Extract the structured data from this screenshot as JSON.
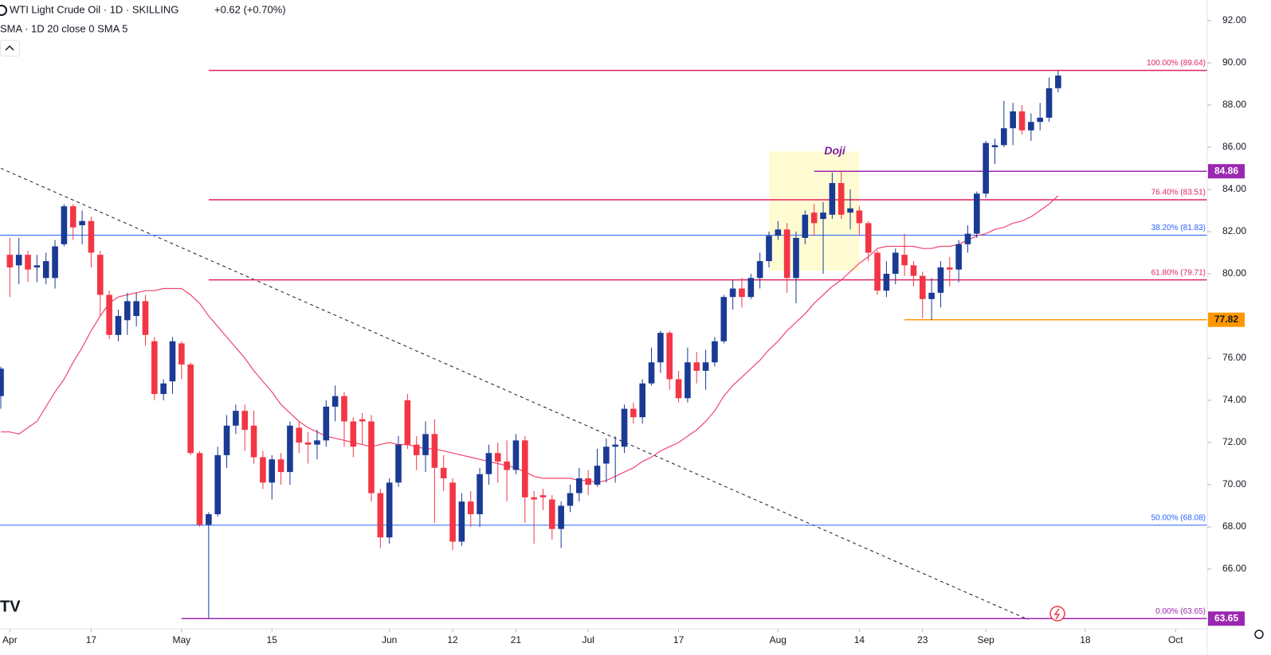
{
  "chart_data": {
    "type": "candlestick",
    "title": "WTI Light Crude Oil · 1D · SKILLING",
    "change": "+0.62 (+0.70%)",
    "indicator": "SMA · 1D 20 close 0 SMA 5",
    "up_color": "#1a3a94",
    "down_color": "#f23645",
    "sma_color": "#f0446f",
    "xlim": [
      -0.09,
      133.5
    ],
    "ylim": [
      63.17,
      92.98
    ],
    "xticks": [
      {
        "value": 1,
        "label": "Apr"
      },
      {
        "value": 10,
        "label": "17"
      },
      {
        "value": 20,
        "label": "May"
      },
      {
        "value": 30,
        "label": "15"
      },
      {
        "value": 43,
        "label": "Jun"
      },
      {
        "value": 50,
        "label": "12"
      },
      {
        "value": 57,
        "label": "21"
      },
      {
        "value": 65,
        "label": "Jul"
      },
      {
        "value": 75,
        "label": "17"
      },
      {
        "value": 86,
        "label": "Aug"
      },
      {
        "value": 95,
        "label": "14"
      },
      {
        "value": 102,
        "label": "23"
      },
      {
        "value": 109,
        "label": "Sep"
      },
      {
        "value": 120,
        "label": "18"
      },
      {
        "value": 130,
        "label": "Oct"
      }
    ],
    "yticks": [
      {
        "value": 66,
        "label": "66.00"
      },
      {
        "value": 68,
        "label": "68.00"
      },
      {
        "value": 70,
        "label": "70.00"
      },
      {
        "value": 72,
        "label": "72.00"
      },
      {
        "value": 74,
        "label": "74.00"
      },
      {
        "value": 76,
        "label": "76.00"
      },
      {
        "value": 80,
        "label": "80.00"
      },
      {
        "value": 82,
        "label": "82.00"
      },
      {
        "value": 84,
        "label": "84.00"
      },
      {
        "value": 86,
        "label": "86.00"
      },
      {
        "value": 88,
        "label": "88.00"
      },
      {
        "value": 90,
        "label": "90.00"
      },
      {
        "value": 92,
        "label": "92.00"
      }
    ],
    "candles": [
      [
        74.2,
        75.6,
        73.6,
        75.5
      ],
      [
        80.9,
        81.7,
        78.9,
        80.3
      ],
      [
        80.4,
        81.7,
        79.5,
        80.9
      ],
      [
        80.9,
        81.1,
        79.6,
        80.2
      ],
      [
        80.3,
        80.9,
        79.6,
        80.4
      ],
      [
        79.8,
        81.0,
        79.5,
        80.6
      ],
      [
        79.8,
        81.6,
        79.3,
        81.3
      ],
      [
        81.4,
        83.3,
        81.3,
        83.2
      ],
      [
        83.2,
        83.3,
        81.6,
        82.2
      ],
      [
        82.3,
        83.0,
        81.4,
        82.5
      ],
      [
        82.5,
        82.7,
        80.3,
        81.0
      ],
      [
        80.9,
        81.1,
        78.0,
        79.0
      ],
      [
        79.0,
        79.2,
        76.9,
        77.1
      ],
      [
        77.1,
        78.3,
        76.8,
        78.0
      ],
      [
        77.8,
        79.1,
        77.1,
        78.7
      ],
      [
        78.0,
        79.1,
        77.5,
        78.7
      ],
      [
        78.7,
        79.0,
        76.6,
        77.1
      ],
      [
        76.8,
        77.0,
        74.0,
        74.3
      ],
      [
        74.3,
        75.0,
        74.0,
        74.8
      ],
      [
        74.9,
        77.0,
        74.3,
        76.8
      ],
      [
        76.7,
        76.8,
        75.0,
        75.7
      ],
      [
        75.7,
        75.8,
        71.4,
        71.5
      ],
      [
        71.5,
        71.6,
        68.0,
        68.1
      ],
      [
        68.1,
        68.7,
        63.65,
        68.6
      ],
      [
        68.6,
        71.8,
        68.5,
        71.4
      ],
      [
        71.4,
        73.3,
        70.8,
        72.8
      ],
      [
        72.8,
        73.8,
        72.4,
        73.5
      ],
      [
        73.5,
        73.8,
        71.6,
        72.6
      ],
      [
        72.8,
        73.5,
        71.0,
        71.3
      ],
      [
        71.3,
        71.6,
        69.8,
        70.1
      ],
      [
        70.1,
        71.4,
        69.3,
        71.2
      ],
      [
        71.2,
        71.5,
        70.0,
        70.6
      ],
      [
        70.6,
        73.0,
        70.0,
        72.8
      ],
      [
        72.7,
        73.0,
        71.5,
        72.0
      ],
      [
        72.0,
        72.5,
        71.0,
        71.9
      ],
      [
        71.9,
        72.6,
        71.2,
        72.1
      ],
      [
        72.1,
        74.0,
        71.8,
        73.7
      ],
      [
        73.7,
        74.7,
        73.0,
        74.2
      ],
      [
        74.2,
        74.4,
        71.8,
        73.0
      ],
      [
        73.0,
        73.2,
        71.3,
        71.8
      ],
      [
        73.1,
        73.4,
        71.9,
        73.0
      ],
      [
        73.0,
        73.3,
        69.2,
        69.6
      ],
      [
        69.6,
        69.8,
        67.0,
        67.5
      ],
      [
        67.5,
        70.3,
        67.2,
        70.1
      ],
      [
        70.1,
        72.3,
        69.9,
        71.9
      ],
      [
        74.0,
        74.3,
        71.7,
        71.9
      ],
      [
        71.9,
        72.3,
        70.7,
        71.4
      ],
      [
        71.4,
        73.0,
        70.6,
        72.4
      ],
      [
        72.4,
        73.1,
        68.2,
        70.8
      ],
      [
        70.8,
        71.4,
        69.7,
        70.3
      ],
      [
        70.1,
        70.3,
        66.9,
        67.3
      ],
      [
        67.3,
        69.6,
        67.1,
        69.2
      ],
      [
        69.2,
        69.7,
        68.0,
        68.6
      ],
      [
        68.6,
        70.8,
        68.0,
        70.5
      ],
      [
        70.5,
        71.9,
        70.0,
        71.5
      ],
      [
        71.5,
        72.0,
        70.1,
        71.1
      ],
      [
        71.1,
        72.1,
        69.2,
        70.7
      ],
      [
        70.7,
        72.4,
        70.5,
        72.1
      ],
      [
        72.1,
        72.3,
        68.2,
        69.4
      ],
      [
        69.4,
        69.7,
        67.2,
        69.3
      ],
      [
        69.5,
        69.8,
        68.8,
        69.4
      ],
      [
        69.3,
        69.5,
        67.4,
        67.9
      ],
      [
        67.9,
        69.2,
        67.0,
        69.0
      ],
      [
        69.0,
        70.0,
        68.7,
        69.6
      ],
      [
        69.6,
        70.8,
        69.2,
        70.3
      ],
      [
        70.3,
        70.7,
        69.5,
        70.0
      ],
      [
        70.0,
        71.7,
        69.9,
        70.9
      ],
      [
        71.0,
        72.2,
        70.1,
        71.8
      ],
      [
        71.8,
        72.3,
        70.1,
        71.9
      ],
      [
        71.8,
        73.8,
        71.5,
        73.6
      ],
      [
        73.6,
        73.9,
        72.9,
        73.2
      ],
      [
        73.2,
        75.0,
        72.9,
        74.8
      ],
      [
        74.8,
        76.5,
        74.7,
        75.8
      ],
      [
        75.8,
        77.3,
        75.3,
        77.2
      ],
      [
        77.2,
        77.3,
        74.5,
        75.0
      ],
      [
        75.0,
        75.4,
        73.9,
        74.1
      ],
      [
        74.1,
        76.5,
        73.9,
        75.8
      ],
      [
        75.8,
        76.3,
        74.8,
        75.4
      ],
      [
        75.4,
        76.4,
        74.5,
        75.8
      ],
      [
        75.8,
        77.0,
        75.6,
        76.8
      ],
      [
        76.8,
        79.0,
        76.7,
        78.9
      ],
      [
        78.9,
        79.7,
        78.3,
        79.3
      ],
      [
        79.3,
        79.8,
        78.4,
        78.9
      ],
      [
        78.9,
        80.0,
        78.8,
        79.8
      ],
      [
        79.8,
        81.0,
        79.3,
        80.6
      ],
      [
        80.6,
        82.0,
        80.3,
        81.8
      ],
      [
        81.8,
        82.5,
        81.6,
        82.1
      ],
      [
        82.1,
        82.4,
        79.1,
        79.8
      ],
      [
        79.8,
        82.0,
        78.6,
        81.7
      ],
      [
        81.7,
        83.0,
        81.4,
        82.8
      ],
      [
        82.9,
        83.3,
        81.8,
        82.4
      ],
      [
        82.6,
        83.4,
        80.0,
        82.9
      ],
      [
        82.8,
        84.8,
        82.6,
        84.3
      ],
      [
        84.3,
        84.86,
        82.6,
        82.8
      ],
      [
        82.9,
        84.0,
        82.1,
        83.1
      ],
      [
        83.0,
        83.2,
        81.8,
        82.4
      ],
      [
        82.4,
        82.5,
        80.6,
        81.0
      ],
      [
        81.0,
        81.1,
        79.0,
        79.2
      ],
      [
        79.2,
        80.6,
        78.9,
        80.0
      ],
      [
        80.0,
        81.2,
        79.5,
        81.0
      ],
      [
        80.9,
        81.9,
        79.9,
        80.4
      ],
      [
        80.4,
        80.6,
        79.4,
        79.9
      ],
      [
        79.9,
        80.1,
        77.9,
        78.8
      ],
      [
        78.8,
        79.8,
        77.82,
        79.1
      ],
      [
        79.1,
        80.6,
        78.4,
        80.3
      ],
      [
        80.3,
        80.8,
        79.4,
        80.2
      ],
      [
        80.2,
        81.6,
        79.6,
        81.4
      ],
      [
        81.4,
        82.3,
        81.0,
        81.9
      ],
      [
        81.9,
        83.9,
        81.7,
        83.8
      ],
      [
        83.8,
        86.3,
        83.6,
        86.2
      ],
      [
        86.0,
        86.4,
        85.2,
        86.1
      ],
      [
        86.1,
        88.2,
        86.0,
        86.9
      ],
      [
        86.9,
        88.1,
        86.1,
        87.7
      ],
      [
        87.7,
        88.0,
        86.6,
        86.8
      ],
      [
        86.8,
        87.6,
        86.3,
        87.2
      ],
      [
        87.2,
        88.1,
        86.8,
        87.4
      ],
      [
        87.4,
        89.3,
        87.2,
        88.8
      ],
      [
        88.8,
        89.64,
        88.6,
        89.4
      ]
    ],
    "sma": [
      72.5,
      72.5,
      72.4,
      72.7,
      73.0,
      73.7,
      74.4,
      75.0,
      75.8,
      76.5,
      77.3,
      78.0,
      78.6,
      78.9,
      79.0,
      79.1,
      79.2,
      79.2,
      79.3,
      79.3,
      79.3,
      79.0,
      78.6,
      78.0,
      77.5,
      77.0,
      76.5,
      76.0,
      75.4,
      74.9,
      74.4,
      73.8,
      73.4,
      73.0,
      72.7,
      72.5,
      72.3,
      72.2,
      72.1,
      72.0,
      71.9,
      71.8,
      71.9,
      72.0,
      71.9,
      71.9,
      71.8,
      71.7,
      71.7,
      71.6,
      71.5,
      71.4,
      71.3,
      71.2,
      71.1,
      71.0,
      70.9,
      70.8,
      70.6,
      70.4,
      70.3,
      70.3,
      70.3,
      70.3,
      70.2,
      70.2,
      70.1,
      70.2,
      70.4,
      70.6,
      70.8,
      71.1,
      71.3,
      71.6,
      71.8,
      72.0,
      72.3,
      72.6,
      73.0,
      73.5,
      74.2,
      74.7,
      75.1,
      75.5,
      75.9,
      76.4,
      76.8,
      77.3,
      77.7,
      78.1,
      78.6,
      79.0,
      79.4,
      79.7,
      80.1,
      80.5,
      80.8,
      81.2,
      81.3,
      81.3,
      81.3,
      81.3,
      81.2,
      81.2,
      81.3,
      81.3,
      81.4,
      81.6,
      81.8,
      81.9,
      82.1,
      82.2,
      82.4,
      82.5,
      82.7,
      83.0,
      83.3,
      83.7
    ],
    "levels": [
      {
        "label": "100.00% (89.64)",
        "value": 89.64,
        "color": "#e0245e",
        "from": 23
      },
      {
        "label": "76.40% (83.51)",
        "value": 83.51,
        "color": "#e0245e",
        "from": 23
      },
      {
        "label": "38.20% (81.83)",
        "value": 81.83,
        "color": "#2962ff"
      },
      {
        "label": "61.80% (79.71)",
        "value": 79.71,
        "color": "#e0245e",
        "from": 23
      },
      {
        "label": "50.00% (68.08)",
        "value": 68.08,
        "color": "#2962ff"
      },
      {
        "label": "0.00% (63.65)",
        "value": 63.65,
        "color": "#9c27b0",
        "from": 20,
        "badge": true
      }
    ],
    "markers": [
      {
        "value": 84.86,
        "color": "#9c27b0",
        "from": 90
      },
      {
        "value": 77.82,
        "color": "#ff9800",
        "from": 100
      }
    ],
    "trendline": {
      "x": [
        0,
        113.7
      ],
      "y": [
        85.0,
        63.6
      ]
    },
    "doji": {
      "label": "Doji",
      "x": [
        85,
        95
      ],
      "y": [
        80.15,
        85.8
      ]
    }
  }
}
